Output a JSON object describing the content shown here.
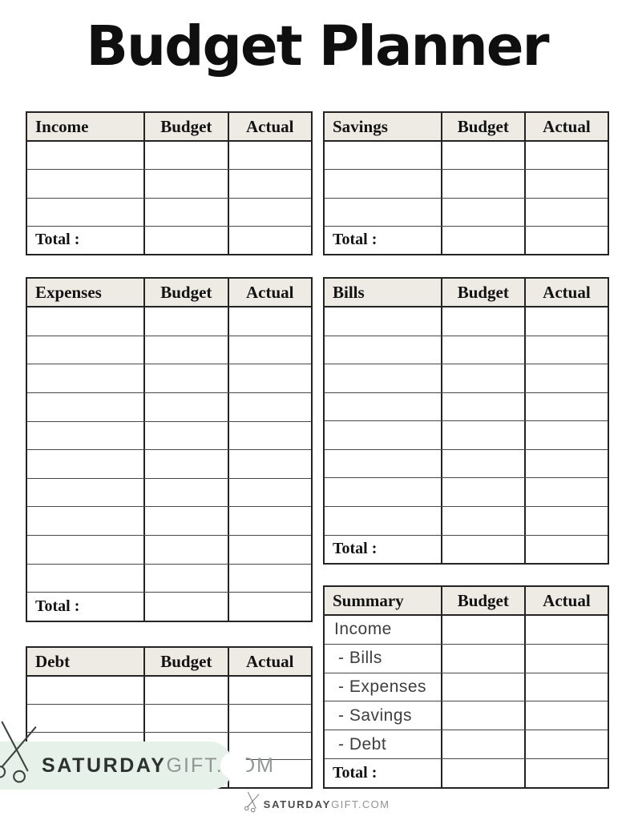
{
  "page": {
    "title": "Budget Planner"
  },
  "labels": {
    "budget": "Budget",
    "actual": "Actual",
    "total": "Total :"
  },
  "tables": {
    "income": {
      "title": "Income",
      "empty_rows": 3,
      "has_total": true
    },
    "savings": {
      "title": "Savings",
      "empty_rows": 3,
      "has_total": true
    },
    "expenses": {
      "title": "Expenses",
      "empty_rows": 10,
      "has_total": true
    },
    "bills": {
      "title": "Bills",
      "empty_rows": 8,
      "has_total": true
    },
    "debt": {
      "title": "Debt",
      "empty_rows": 4,
      "has_total": false
    },
    "summary": {
      "title": "Summary",
      "row_labels": [
        "Income",
        "- Bills",
        "- Expenses",
        "- Savings",
        "- Debt"
      ],
      "has_total": true
    }
  },
  "branding": {
    "badge": {
      "primary": "SATURDAY",
      "secondary": "GIFT.COM"
    },
    "footer": {
      "primary": "SATURDAY",
      "secondary": "GIFT.COM"
    }
  },
  "colors": {
    "table_header_bg": "#edebe4",
    "table_border": "#232323",
    "row_line": "#474747",
    "summary_row_text": "#3e3e3e",
    "badge_bg": "#e6f1ea",
    "brand_dark": "#2d322f",
    "brand_muted": "#8f9693",
    "footer_dark": "#4c4c4c",
    "footer_muted": "#929292"
  }
}
